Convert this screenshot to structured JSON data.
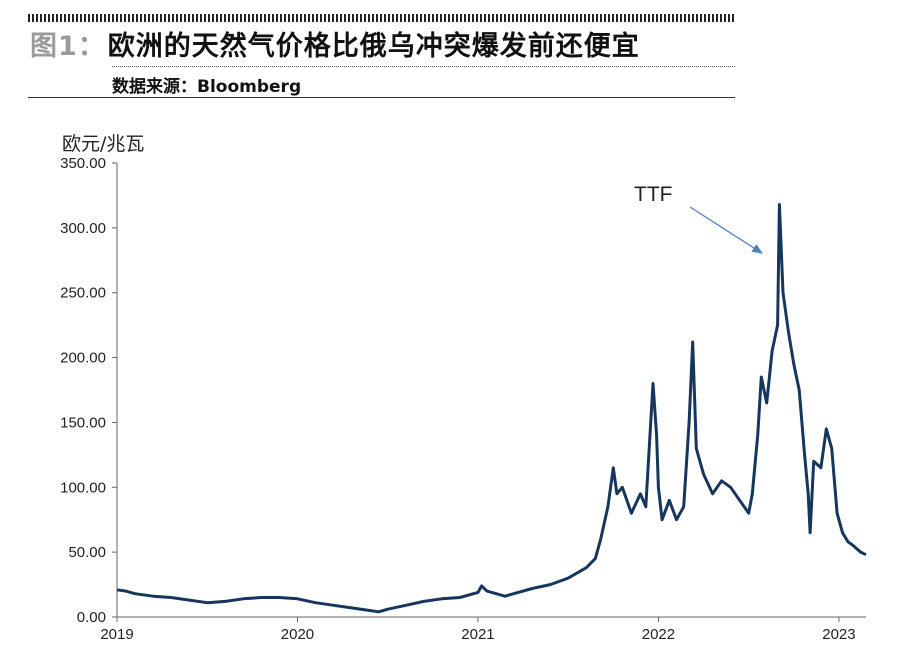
{
  "header": {
    "figure_number": "图1：",
    "title": "欧洲的天然气价格比俄乌冲突爆发前还便宜",
    "source": "数据来源：Bloomberg"
  },
  "chart_data": {
    "type": "line",
    "ylabel": "欧元/兆瓦",
    "ylim": [
      0,
      350
    ],
    "yticks": [
      "0.00",
      "50.00",
      "100.00",
      "150.00",
      "200.00",
      "250.00",
      "300.00",
      "350.00"
    ],
    "xlim": [
      2019.0,
      2023.15
    ],
    "xticks": [
      "2019",
      "2020",
      "2021",
      "2022",
      "2023"
    ],
    "grid": false,
    "line_color": "#17365d",
    "annotation": {
      "text": "TTF",
      "arrow_to": [
        2022.58,
        280
      ]
    },
    "series": [
      {
        "name": "TTF",
        "points": [
          [
            2019.0,
            21
          ],
          [
            2019.05,
            20
          ],
          [
            2019.1,
            18
          ],
          [
            2019.2,
            16
          ],
          [
            2019.3,
            15
          ],
          [
            2019.4,
            13
          ],
          [
            2019.5,
            11
          ],
          [
            2019.6,
            12
          ],
          [
            2019.7,
            14
          ],
          [
            2019.8,
            15
          ],
          [
            2019.9,
            15
          ],
          [
            2020.0,
            14
          ],
          [
            2020.1,
            11
          ],
          [
            2020.2,
            9
          ],
          [
            2020.3,
            7
          ],
          [
            2020.4,
            5
          ],
          [
            2020.45,
            4
          ],
          [
            2020.5,
            6
          ],
          [
            2020.6,
            9
          ],
          [
            2020.7,
            12
          ],
          [
            2020.8,
            14
          ],
          [
            2020.9,
            15
          ],
          [
            2021.0,
            19
          ],
          [
            2021.02,
            24
          ],
          [
            2021.05,
            20
          ],
          [
            2021.15,
            16
          ],
          [
            2021.3,
            22
          ],
          [
            2021.4,
            25
          ],
          [
            2021.5,
            30
          ],
          [
            2021.6,
            38
          ],
          [
            2021.65,
            45
          ],
          [
            2021.68,
            60
          ],
          [
            2021.72,
            85
          ],
          [
            2021.75,
            115
          ],
          [
            2021.77,
            95
          ],
          [
            2021.8,
            100
          ],
          [
            2021.85,
            80
          ],
          [
            2021.9,
            95
          ],
          [
            2021.93,
            85
          ],
          [
            2021.97,
            180
          ],
          [
            2021.99,
            140
          ],
          [
            2022.0,
            100
          ],
          [
            2022.02,
            75
          ],
          [
            2022.06,
            90
          ],
          [
            2022.1,
            75
          ],
          [
            2022.14,
            85
          ],
          [
            2022.17,
            150
          ],
          [
            2022.19,
            212
          ],
          [
            2022.21,
            130
          ],
          [
            2022.25,
            110
          ],
          [
            2022.3,
            95
          ],
          [
            2022.35,
            105
          ],
          [
            2022.4,
            100
          ],
          [
            2022.45,
            90
          ],
          [
            2022.5,
            80
          ],
          [
            2022.52,
            95
          ],
          [
            2022.55,
            140
          ],
          [
            2022.57,
            185
          ],
          [
            2022.6,
            165
          ],
          [
            2022.63,
            205
          ],
          [
            2022.66,
            225
          ],
          [
            2022.67,
            318
          ],
          [
            2022.69,
            250
          ],
          [
            2022.72,
            220
          ],
          [
            2022.75,
            195
          ],
          [
            2022.78,
            175
          ],
          [
            2022.81,
            125
          ],
          [
            2022.83,
            95
          ],
          [
            2022.84,
            65
          ],
          [
            2022.86,
            120
          ],
          [
            2022.9,
            115
          ],
          [
            2022.93,
            145
          ],
          [
            2022.96,
            130
          ],
          [
            2022.99,
            80
          ],
          [
            2023.02,
            65
          ],
          [
            2023.05,
            58
          ],
          [
            2023.08,
            55
          ],
          [
            2023.12,
            50
          ],
          [
            2023.15,
            48
          ]
        ]
      }
    ]
  }
}
